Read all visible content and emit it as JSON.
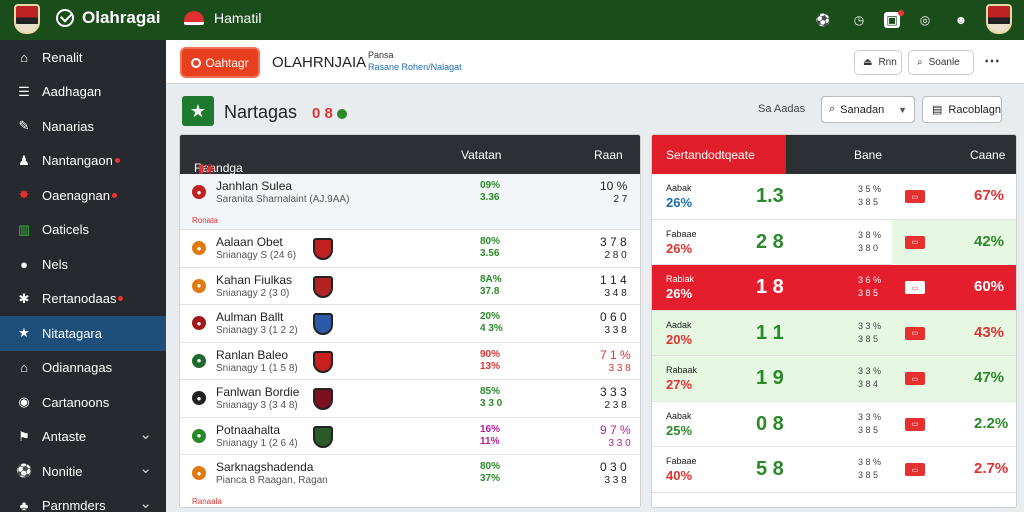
{
  "topbar": {
    "brand": "Olahragai",
    "section": "Hamatil",
    "icons": [
      "soccer-ball-icon",
      "clock-icon",
      "calendar-icon",
      "target-icon",
      "user-icon"
    ]
  },
  "sidebar": {
    "items": [
      {
        "label": "Renalit",
        "icon": "home-icon",
        "glyph": "⌂"
      },
      {
        "label": "Aadhagan",
        "icon": "list-icon",
        "glyph": "☰"
      },
      {
        "label": "Nanarias",
        "icon": "chat-icon",
        "glyph": "✎"
      },
      {
        "label": "Nantangaon",
        "icon": "person-icon",
        "glyph": "♟",
        "badge": true
      },
      {
        "label": "Oaenagnan",
        "icon": "fire-icon",
        "glyph": "✸",
        "badge": true
      },
      {
        "label": "Oaticels",
        "icon": "chart-icon",
        "glyph": "▥"
      },
      {
        "label": "Nels",
        "icon": "ball-icon",
        "glyph": "●"
      },
      {
        "label": "Rertanodaas",
        "icon": "gear-icon",
        "glyph": "✱",
        "badge": true
      },
      {
        "label": "Nitatagara",
        "icon": "star-icon",
        "glyph": "★",
        "active": true
      },
      {
        "label": "Odiannagas",
        "icon": "home-alt-icon",
        "glyph": "⌂"
      },
      {
        "label": "Cartanoons",
        "icon": "eye-icon",
        "glyph": "◉"
      },
      {
        "label": "Antaste",
        "icon": "flag-icon",
        "glyph": "⚑",
        "chevron": true
      },
      {
        "label": "Nonitie",
        "icon": "trophy-icon",
        "glyph": "⚽",
        "chevron": true
      },
      {
        "label": "Parnmders",
        "icon": "people-icon",
        "glyph": "♣",
        "chevron": true
      }
    ]
  },
  "header": {
    "logo_label": "Oahtagr",
    "title": "OLAHRNJAIA",
    "sub_line1": "Pansa",
    "sub_line2a": "Rasane",
    "sub_line2b": "Rohen/Nalagat",
    "btn1": "Rnn",
    "btn2": "Soanle"
  },
  "section": {
    "title": "Nartagas",
    "score": "0 8",
    "sort_label": "Sa Aadas",
    "sort_value": "Sanadan",
    "filter_label": "Racoblagn"
  },
  "left_panel": {
    "col1": "Raandga",
    "col2": "Vatatan",
    "col3": "Raan",
    "rows": [
      {
        "name": "Janhlan Sulea",
        "meta": "Saranita Sharnalaint (AJ.9AA)",
        "va1": "09%",
        "va2": "3.36",
        "vb1": "10 %",
        "vb2": "2 7",
        "tag": "Ronata",
        "icon_color": "#c02020",
        "va_color": "#2a8a2a"
      },
      {
        "name": "Aalaan Obet",
        "meta": "Snianagy S (24 6)",
        "va1": "80%",
        "va2": "3.56",
        "vb1": "3 7 8",
        "vb2": "2 8 0",
        "icon_color": "#e07a10",
        "shield": "#c02020",
        "va_color": "#2a8a2a"
      },
      {
        "name": "Kahan Fiulkas",
        "meta": "Snianagy 2 (3 0)",
        "va1": "8A%",
        "va2": "37.8",
        "vb1": "1 1 4",
        "vb2": "3 4 8",
        "icon_color": "#e07a10",
        "shield": "#b22222",
        "va_color": "#2a8a2a"
      },
      {
        "name": "Aulman Ballt",
        "meta": "Snianagy 3 (1 2 2)",
        "va1": "20%",
        "va2": "4 3%",
        "vb1": "0 6 0",
        "vb2": "3 3 8",
        "icon_color": "#a01818",
        "shield": "#2a5aa8",
        "va_color": "#2a8a2a"
      },
      {
        "name": "Ranlan Baleo",
        "meta": "Snianagy 1 (1 5 8)",
        "va1": "90%",
        "va2": "13%",
        "vb1": "7 1 %",
        "vb2": "3 3 8",
        "icon_color": "#1e6a2e",
        "shield": "#c82020",
        "va_color": "#d33"
      },
      {
        "name": "Fanlwan Bordie",
        "meta": "Snianagy 3 (3 4 8)",
        "va1": "85%",
        "va2": "3 3 0",
        "vb1": "3 3 3",
        "vb2": "2 3 8",
        "icon_color": "#222",
        "shield": "#7a1020",
        "va_color": "#2a8a2a"
      },
      {
        "name": "Potnaahalta",
        "meta": "Snianagy 1 (2 6 4)",
        "va1": "16%",
        "va2": "11%",
        "vb1": "9 7 %",
        "vb2": "3 3 0",
        "icon_color": "#2a8a2a",
        "shield": "#2a5a2a",
        "va_color": "#b0209a"
      },
      {
        "name": "Sarknagshadenda",
        "meta": "Pianca 8 Raagan, Ragan",
        "va1": "80%",
        "va2": "37%",
        "vb1": "0 3 0",
        "vb2": "3 3 8",
        "tag": "Ranaala",
        "icon_color": "#e07a10",
        "va_color": "#2a8a2a"
      }
    ]
  },
  "right_panel": {
    "col1": "Sertandodtqeate",
    "col2": "Bane",
    "col3": "Caane",
    "rows": [
      {
        "label": "Aabak",
        "pct": "26%",
        "score": "1.3",
        "mid1": "3 5 %",
        "mid2": "3 8 5",
        "val": "67%",
        "pct_color": "#1a6fb0",
        "score_color": "#2a8a2a",
        "val_color": "#d33",
        "style": ""
      },
      {
        "label": "Fabaae",
        "pct": "26%",
        "score": "2 8",
        "mid1": "3 8 %",
        "mid2": "3 8 0",
        "val": "42%",
        "pct_color": "#d33",
        "score_color": "#2a8a2a",
        "val_color": "#2a8a2a",
        "style": "gr-cell",
        "boxed": true
      },
      {
        "label": "Rablak",
        "pct": "26%",
        "score": "1 8",
        "mid1": "3 6 %",
        "mid2": "3 8 5",
        "val": "60%",
        "pct_color": "#fff",
        "score_color": "#fff",
        "val_color": "#fff",
        "style": "hl",
        "boxed": true
      },
      {
        "label": "Aadak",
        "pct": "20%",
        "score": "1 1",
        "mid1": "3 3 %",
        "mid2": "3 8 5",
        "val": "43%",
        "pct_color": "#d33",
        "score_color": "#2a8a2a",
        "val_color": "#d33",
        "style": "gr"
      },
      {
        "label": "Rabaak",
        "pct": "27%",
        "score": "1 9",
        "mid1": "3 3 %",
        "mid2": "3 8 4",
        "val": "47%",
        "pct_color": "#d33",
        "score_color": "#2a8a2a",
        "val_color": "#2a8a2a",
        "style": "gr"
      },
      {
        "label": "Aabak",
        "pct": "25%",
        "score": "0 8",
        "mid1": "3 3 %",
        "mid2": "3 8 5",
        "val": "2.2%",
        "pct_color": "#2a8a2a",
        "score_color": "#2a8a2a",
        "val_color": "#2a8a2a",
        "style": "",
        "boxed": true
      },
      {
        "label": "Fabaae",
        "pct": "40%",
        "score": "5 8",
        "mid1": "3 8 %",
        "mid2": "3 8 5",
        "val": "2.7%",
        "pct_color": "#d33",
        "score_color": "#2a8a2a",
        "val_color": "#d33",
        "style": "",
        "boxed": true
      }
    ]
  }
}
